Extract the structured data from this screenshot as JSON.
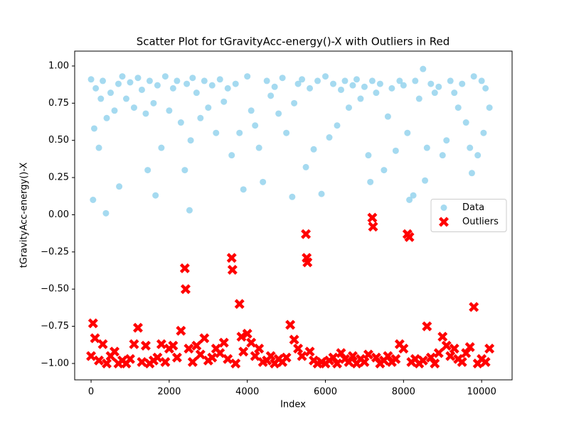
{
  "chart_data": {
    "type": "scatter",
    "title": "Scatter Plot for tGravityAcc-energy()-X with Outliers in Red",
    "xlabel": "Index",
    "ylabel": "tGravityAcc-energy()-X",
    "xlim": [
      -420,
      10780
    ],
    "ylim": [
      -1.11,
      1.1
    ],
    "xticks": [
      0,
      2000,
      4000,
      6000,
      8000,
      10000
    ],
    "yticks": [
      {
        "value": -1,
        "label": "−1.00"
      },
      {
        "value": -0.75,
        "label": "−0.75"
      },
      {
        "value": -0.5,
        "label": "−0.50"
      },
      {
        "value": -0.25,
        "label": "−0.25"
      },
      {
        "value": 0,
        "label": "0.00"
      },
      {
        "value": 0.25,
        "label": "0.25"
      },
      {
        "value": 0.5,
        "label": "0.50"
      },
      {
        "value": 0.75,
        "label": "0.75"
      },
      {
        "value": 1,
        "label": "1.00"
      }
    ],
    "legend": "center right",
    "series": [
      {
        "name": "Data",
        "color": "#87ceeb",
        "marker": "circle",
        "x": [
          0,
          50,
          80,
          120,
          200,
          250,
          300,
          380,
          400,
          500,
          600,
          700,
          720,
          800,
          900,
          1000,
          1100,
          1200,
          1300,
          1400,
          1450,
          1500,
          1600,
          1650,
          1700,
          1800,
          1900,
          2000,
          2100,
          2200,
          2300,
          2400,
          2450,
          2520,
          2550,
          2600,
          2700,
          2800,
          2900,
          3000,
          3100,
          3200,
          3300,
          3400,
          3500,
          3600,
          3700,
          3800,
          3900,
          4000,
          4100,
          4200,
          4300,
          4400,
          4500,
          4600,
          4700,
          4800,
          4900,
          5000,
          5150,
          5200,
          5300,
          5400,
          5500,
          5600,
          5700,
          5800,
          5900,
          6000,
          6100,
          6200,
          6300,
          6400,
          6500,
          6600,
          6700,
          6800,
          6900,
          7000,
          7100,
          7150,
          7200,
          7300,
          7400,
          7500,
          7600,
          7700,
          7800,
          7900,
          8000,
          8100,
          8150,
          8250,
          8300,
          8400,
          8500,
          8550,
          8600,
          8700,
          8800,
          8900,
          9000,
          9100,
          9200,
          9300,
          9400,
          9500,
          9600,
          9700,
          9750,
          9800,
          9900,
          10000,
          10050,
          10100,
          10200
        ],
        "values": [
          0.91,
          0.1,
          0.58,
          0.85,
          0.45,
          0.78,
          0.9,
          0.01,
          0.65,
          0.82,
          0.7,
          0.88,
          0.19,
          0.93,
          0.78,
          0.89,
          0.72,
          0.92,
          0.84,
          0.68,
          0.3,
          0.9,
          0.75,
          0.13,
          0.87,
          0.45,
          0.93,
          0.7,
          0.85,
          0.9,
          0.62,
          0.3,
          0.88,
          0.03,
          0.5,
          0.92,
          0.82,
          0.65,
          0.9,
          0.72,
          0.87,
          0.55,
          0.91,
          0.76,
          0.85,
          0.4,
          0.88,
          0.55,
          0.17,
          0.93,
          0.7,
          0.6,
          0.45,
          0.22,
          0.9,
          0.8,
          0.86,
          0.68,
          0.92,
          0.55,
          0.12,
          0.75,
          0.88,
          0.91,
          0.32,
          0.85,
          0.44,
          0.9,
          0.14,
          0.93,
          0.52,
          0.88,
          0.6,
          0.84,
          0.9,
          0.72,
          0.87,
          0.91,
          0.78,
          0.86,
          0.4,
          0.22,
          0.9,
          0.82,
          0.88,
          0.3,
          0.66,
          0.85,
          0.43,
          0.9,
          0.87,
          0.55,
          0.1,
          0.13,
          0.9,
          0.78,
          0.98,
          0.23,
          0.45,
          0.88,
          0.82,
          0.86,
          0.4,
          0.5,
          0.9,
          0.82,
          0.72,
          0.88,
          0.62,
          0.45,
          0.28,
          0.93,
          0.4,
          0.9,
          0.55,
          0.85,
          0.72
        ]
      },
      {
        "name": "Outliers",
        "color": "#ff0000",
        "marker": "x",
        "x": [
          0,
          50,
          100,
          200,
          300,
          400,
          500,
          600,
          700,
          800,
          900,
          1000,
          1100,
          1200,
          1300,
          1400,
          1500,
          1600,
          1700,
          1800,
          1900,
          2000,
          2100,
          2200,
          2300,
          2400,
          2420,
          2500,
          2600,
          2700,
          2800,
          2900,
          3000,
          3100,
          3200,
          3300,
          3400,
          3500,
          3600,
          3620,
          3700,
          3800,
          3850,
          3900,
          4000,
          4100,
          4200,
          4300,
          4400,
          4500,
          4600,
          4700,
          4800,
          4900,
          5000,
          5100,
          5200,
          5300,
          5400,
          5500,
          5520,
          5540,
          5600,
          5700,
          5800,
          5900,
          6000,
          6100,
          6200,
          6300,
          6400,
          6500,
          6600,
          6700,
          6800,
          6900,
          7000,
          7100,
          7200,
          7220,
          7300,
          7400,
          7500,
          7600,
          7700,
          7800,
          7900,
          8000,
          8100,
          8150,
          8200,
          8300,
          8400,
          8500,
          8600,
          8700,
          8800,
          8900,
          9000,
          9100,
          9200,
          9300,
          9400,
          9500,
          9600,
          9700,
          9800,
          9900,
          10000,
          10100,
          10200
        ],
        "values": [
          -0.95,
          -0.73,
          -0.83,
          -0.98,
          -0.87,
          -1.0,
          -0.95,
          -0.92,
          -1.0,
          -0.98,
          -1.0,
          -0.97,
          -0.87,
          -0.76,
          -0.99,
          -0.88,
          -1.0,
          -0.98,
          -0.96,
          -0.87,
          -0.99,
          -0.9,
          -0.88,
          -0.96,
          -0.78,
          -0.36,
          -0.5,
          -0.9,
          -0.99,
          -0.88,
          -0.94,
          -0.83,
          -0.98,
          -0.96,
          -0.9,
          -0.93,
          -0.86,
          -0.97,
          -0.29,
          -0.37,
          -1.0,
          -0.6,
          -0.82,
          -0.92,
          -0.8,
          -0.86,
          -0.95,
          -0.9,
          -0.99,
          -0.98,
          -0.95,
          -1.0,
          -0.97,
          -0.99,
          -0.96,
          -0.74,
          -0.84,
          -0.9,
          -0.95,
          -0.13,
          -0.29,
          -0.32,
          -0.92,
          -0.98,
          -1.0,
          -0.99,
          -1.0,
          -0.98,
          -0.96,
          -1.0,
          -0.93,
          -0.97,
          -0.99,
          -0.95,
          -1.0,
          -0.97,
          -0.99,
          -0.94,
          -0.02,
          -0.08,
          -0.96,
          -1.0,
          -0.98,
          -0.95,
          -0.99,
          -0.97,
          -0.87,
          -0.9,
          -0.13,
          -0.15,
          -0.99,
          -0.97,
          -1.0,
          -0.98,
          -0.75,
          -0.96,
          -1.0,
          -0.93,
          -0.82,
          -0.88,
          -0.95,
          -0.9,
          -0.97,
          -0.99,
          -0.93,
          -0.89,
          -0.62,
          -1.0,
          -0.97,
          -0.99,
          -0.9
        ]
      }
    ]
  }
}
